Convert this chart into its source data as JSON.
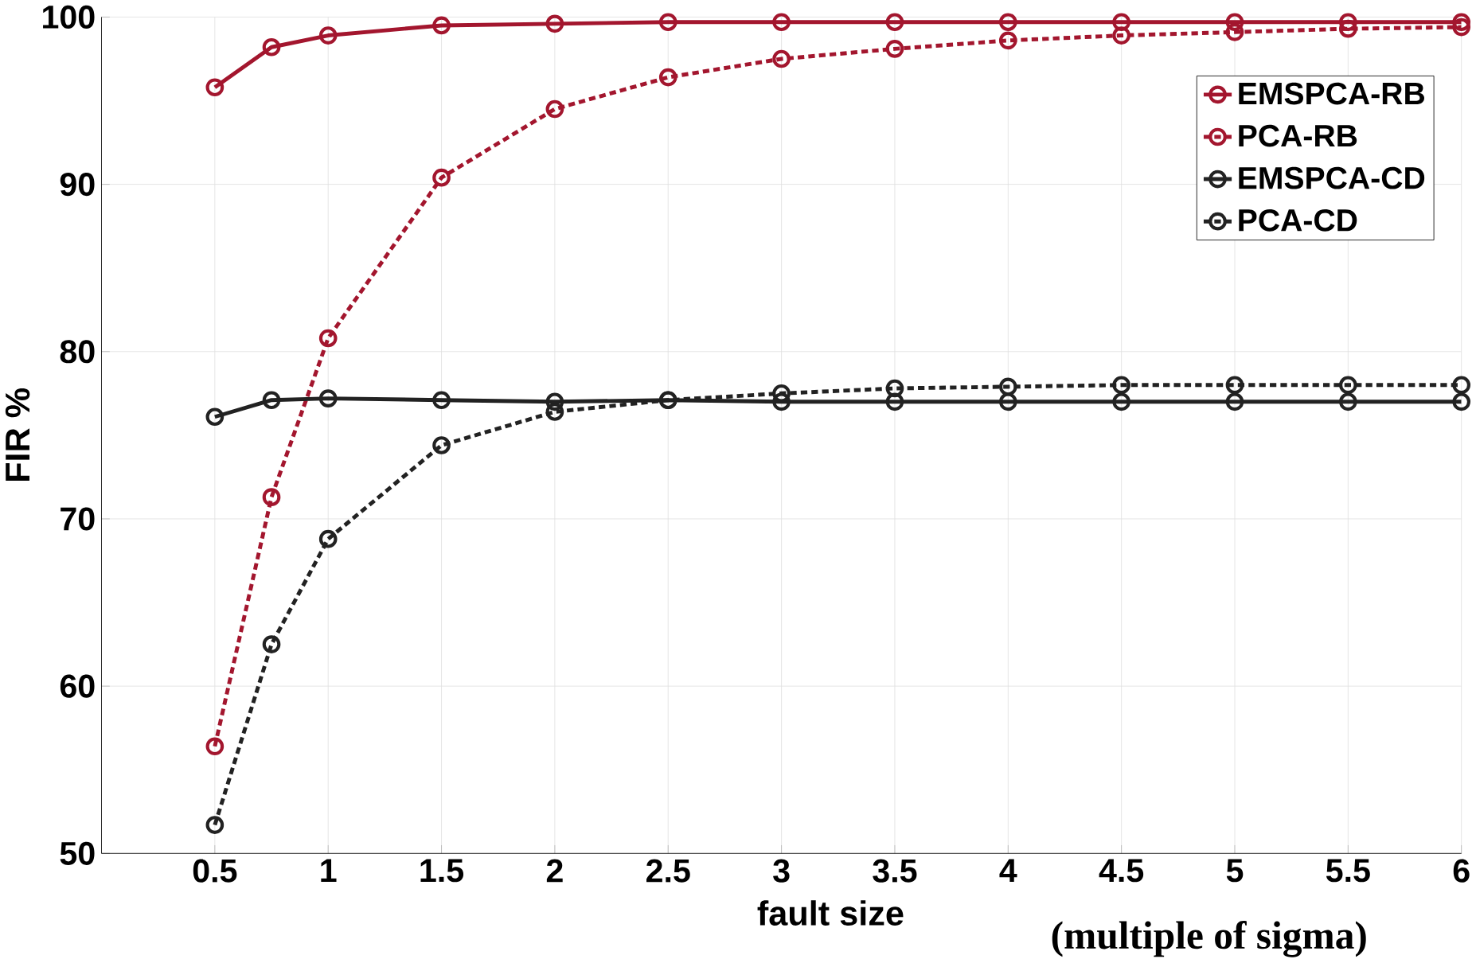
{
  "chart_data": {
    "type": "line",
    "xlabel": "fault size",
    "ylabel": "FIR %",
    "annotations": [
      "(multiple of sigma)"
    ],
    "x": [
      0.5,
      0.75,
      1,
      1.5,
      2,
      2.5,
      3,
      3.5,
      4,
      4.5,
      5,
      5.5,
      6
    ],
    "series": [
      {
        "name": "EMSPCA-RB",
        "color": "#a3162e",
        "line_style": "solid",
        "values": [
          95.8,
          98.2,
          98.9,
          99.5,
          99.6,
          99.7,
          99.7,
          99.7,
          99.7,
          99.7,
          99.7,
          99.7,
          99.7
        ]
      },
      {
        "name": "PCA-RB",
        "color": "#a3162e",
        "line_style": "dashed",
        "values": [
          56.4,
          71.3,
          80.8,
          90.4,
          94.5,
          96.4,
          97.5,
          98.1,
          98.6,
          98.9,
          99.1,
          99.3,
          99.4
        ]
      },
      {
        "name": "EMSPCA-CD",
        "color": "#222222",
        "line_style": "solid",
        "values": [
          76.1,
          77.1,
          77.2,
          77.1,
          77.0,
          77.1,
          77.0,
          77.0,
          77.0,
          77.0,
          77.0,
          77.0,
          77.0
        ]
      },
      {
        "name": "PCA-CD",
        "color": "#222222",
        "line_style": "dashed",
        "values": [
          51.7,
          62.5,
          68.8,
          74.4,
          76.4,
          77.1,
          77.5,
          77.8,
          77.9,
          78.0,
          78.0,
          78.0,
          78.0
        ]
      }
    ],
    "xlim": [
      0,
      6
    ],
    "ylim": [
      50,
      100
    ],
    "xticks": [
      0.5,
      1,
      1.5,
      2,
      2.5,
      3,
      3.5,
      4,
      4.5,
      5,
      5.5,
      6
    ],
    "yticks": [
      50,
      60,
      70,
      80,
      90,
      100
    ],
    "grid": true,
    "legend": "top right",
    "marker": "circle"
  }
}
